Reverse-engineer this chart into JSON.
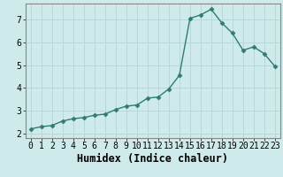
{
  "x": [
    0,
    1,
    2,
    3,
    4,
    5,
    6,
    7,
    8,
    9,
    10,
    11,
    12,
    13,
    14,
    15,
    16,
    17,
    18,
    19,
    20,
    21,
    22,
    23
  ],
  "y": [
    2.2,
    2.3,
    2.35,
    2.55,
    2.65,
    2.7,
    2.8,
    2.85,
    3.05,
    3.2,
    3.25,
    3.55,
    3.6,
    3.95,
    4.55,
    7.05,
    7.2,
    7.45,
    6.85,
    6.4,
    5.65,
    5.8,
    5.5,
    4.95
  ],
  "line_color": "#2e7d6e",
  "bg_color": "#ceeaea",
  "grid_color": "#b8d8d8",
  "plot_bg": "#ceeaea",
  "xlabel": "Humidex (Indice chaleur)",
  "xlim": [
    -0.5,
    23.5
  ],
  "ylim": [
    1.8,
    7.7
  ],
  "yticks": [
    2,
    3,
    4,
    5,
    6,
    7
  ],
  "xticks": [
    0,
    1,
    2,
    3,
    4,
    5,
    6,
    7,
    8,
    9,
    10,
    11,
    12,
    13,
    14,
    15,
    16,
    17,
    18,
    19,
    20,
    21,
    22,
    23
  ],
  "markersize": 2.5,
  "linewidth": 1.0,
  "xlabel_fontsize": 8.5,
  "tick_fontsize": 7,
  "spine_color": "#888888"
}
